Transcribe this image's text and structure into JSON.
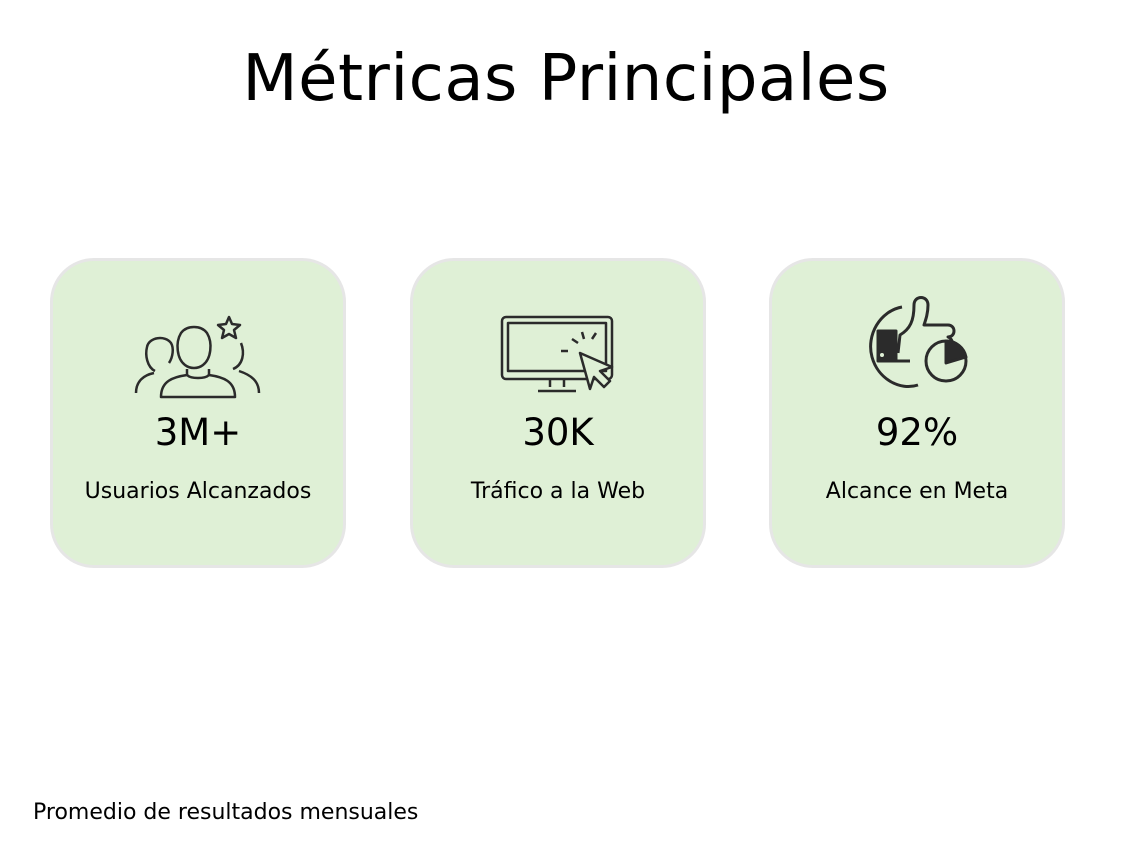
{
  "title": "Métricas Principales",
  "colors": {
    "card_bg": "#dff0d6",
    "card_border": "#e6e6e6",
    "icon": "#2b2b2b"
  },
  "metrics": [
    {
      "icon": "users-star-icon",
      "value": "3M+",
      "label": "Usuarios Alcanzados"
    },
    {
      "icon": "monitor-click-icon",
      "value": "30K",
      "label": "Tráfico a la Web"
    },
    {
      "icon": "thumbs-up-pie-icon",
      "value": "92%",
      "label": "Alcance en Meta"
    }
  ],
  "footer": "Promedio de resultados mensuales"
}
